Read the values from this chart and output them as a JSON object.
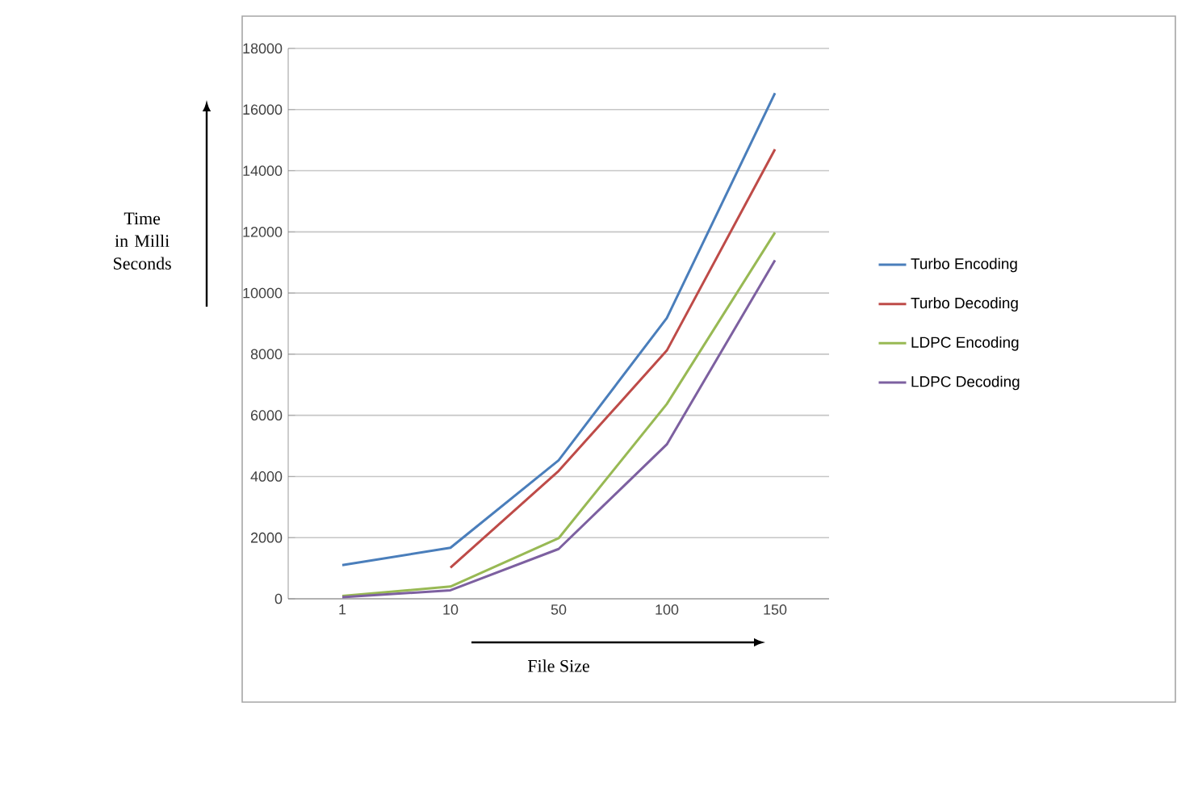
{
  "chart_data": {
    "type": "line",
    "xlabel": "File Size",
    "ylabel": "Time in Milli Seconds",
    "categories": [
      "1",
      "10",
      "50",
      "100",
      "150"
    ],
    "series": [
      {
        "name": "Turbo Encoding",
        "color": "#4a7ebb",
        "values": [
          1100,
          1670,
          4530,
          9180,
          16540
        ]
      },
      {
        "name": "Turbo Decoding",
        "color": "#be4b48",
        "values": [
          null,
          1020,
          4180,
          8120,
          14700
        ]
      },
      {
        "name": "LDPC Encoding",
        "color": "#98b954",
        "values": [
          90,
          400,
          1980,
          6370,
          11980
        ]
      },
      {
        "name": "LDPC Decoding",
        "color": "#7d60a0",
        "values": [
          50,
          280,
          1630,
          5050,
          11070
        ]
      }
    ],
    "ylim": [
      0,
      18000
    ],
    "yticks": [
      0,
      2000,
      4000,
      6000,
      8000,
      10000,
      12000,
      14000,
      16000,
      18000
    ],
    "grid": "y",
    "legend": "right"
  }
}
